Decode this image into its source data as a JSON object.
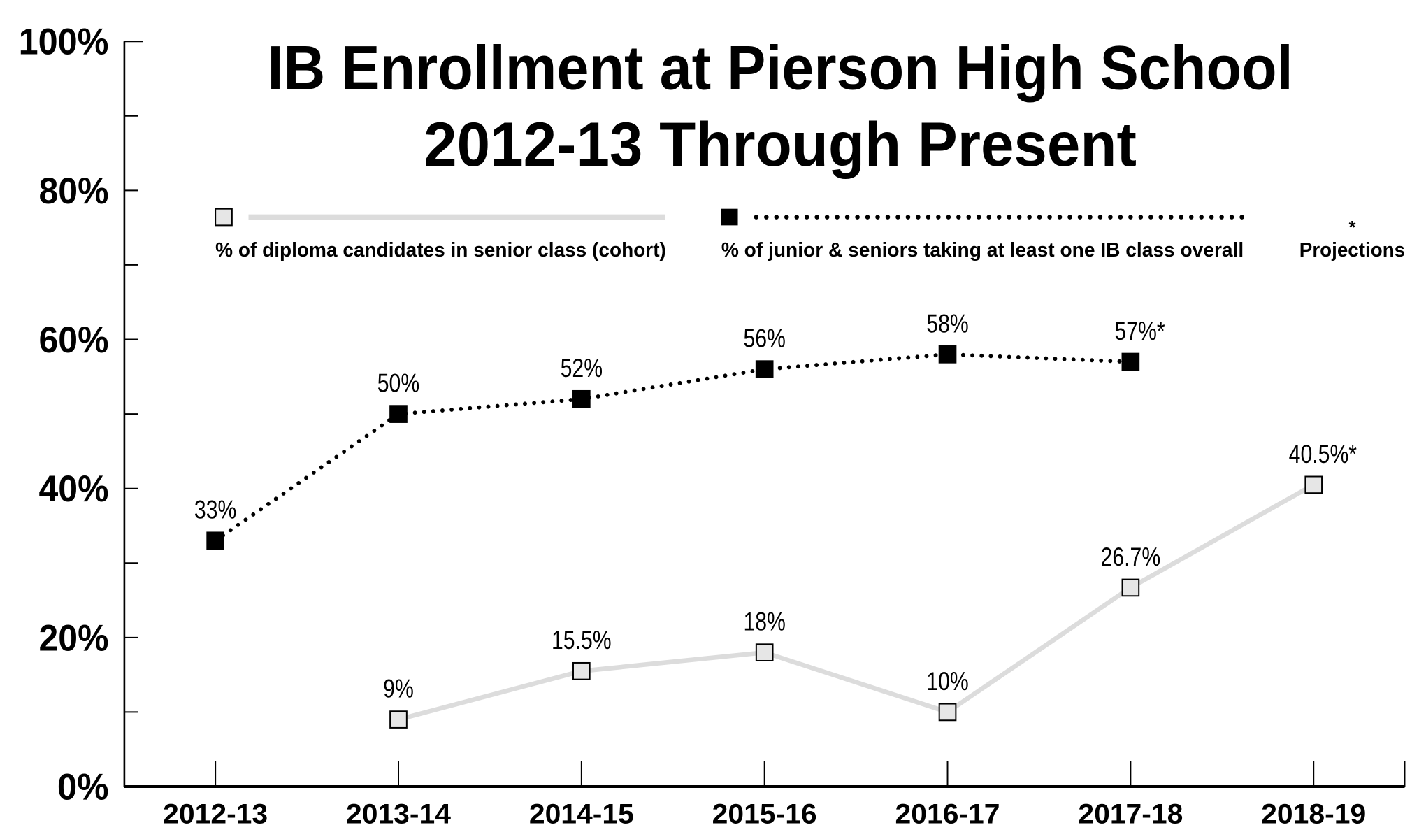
{
  "chart_data": {
    "type": "line",
    "title": [
      "IB Enrollment at Pierson High School",
      "2012-13 Through Present"
    ],
    "categories": [
      "2012-13",
      "2013-14",
      "2014-15",
      "2015-16",
      "2016-17",
      "2017-18",
      "2018-19"
    ],
    "ylim": [
      0,
      100
    ],
    "y_ticks": [
      "0%",
      "20%",
      "40%",
      "60%",
      "80%",
      "100%"
    ],
    "y_tick_values": [
      0,
      20,
      40,
      60,
      80,
      100
    ],
    "grid": false,
    "legend_position": "top",
    "series": [
      {
        "name": "% of diploma candidates in senior class (cohort)",
        "style": "solid light gray line, light gray square markers",
        "color": "#dcdcdc",
        "marker_fill": "#e6e6e6",
        "values": [
          null,
          9,
          15.5,
          18,
          10,
          26.7,
          40.5
        ],
        "labels": [
          null,
          "9%",
          "15.5%",
          "18%",
          "10%",
          "26.7%",
          "40.5%*"
        ]
      },
      {
        "name": "% of junior & seniors taking at least one IB class overall",
        "style": "dotted black line, black square markers",
        "color": "#000000",
        "marker_fill": "#000000",
        "values": [
          33,
          50,
          52,
          56,
          58,
          57,
          null
        ],
        "labels": [
          "33%",
          "50%",
          "52%",
          "56%",
          "58%",
          "57%*",
          null
        ]
      }
    ],
    "projection_note": {
      "symbol": "*",
      "label": "Projections"
    }
  }
}
